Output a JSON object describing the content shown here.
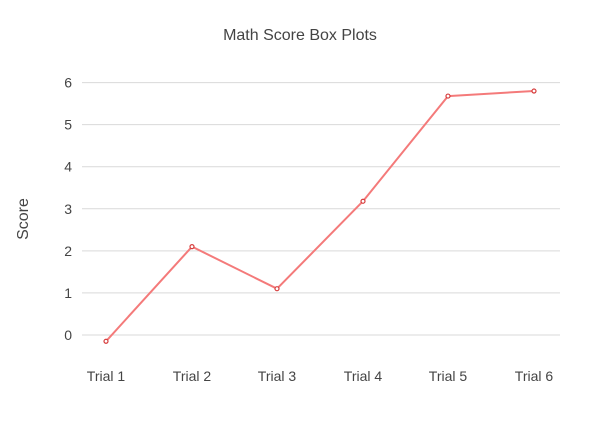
{
  "chart_data": {
    "type": "line",
    "title": "Math Score Box Plots",
    "xlabel": "",
    "ylabel": "Score",
    "categories": [
      "Trial 1",
      "Trial 2",
      "Trial 3",
      "Trial 4",
      "Trial 5",
      "Trial 6"
    ],
    "series": [
      {
        "values": [
          -0.15,
          2.1,
          1.1,
          3.18,
          5.68,
          5.8
        ],
        "color": "#f47a7a"
      }
    ],
    "ylim": [
      -0.5,
      6.3
    ],
    "yticks": [
      0,
      1,
      2,
      3,
      4,
      5,
      6
    ],
    "grid": true,
    "legend": "none"
  }
}
